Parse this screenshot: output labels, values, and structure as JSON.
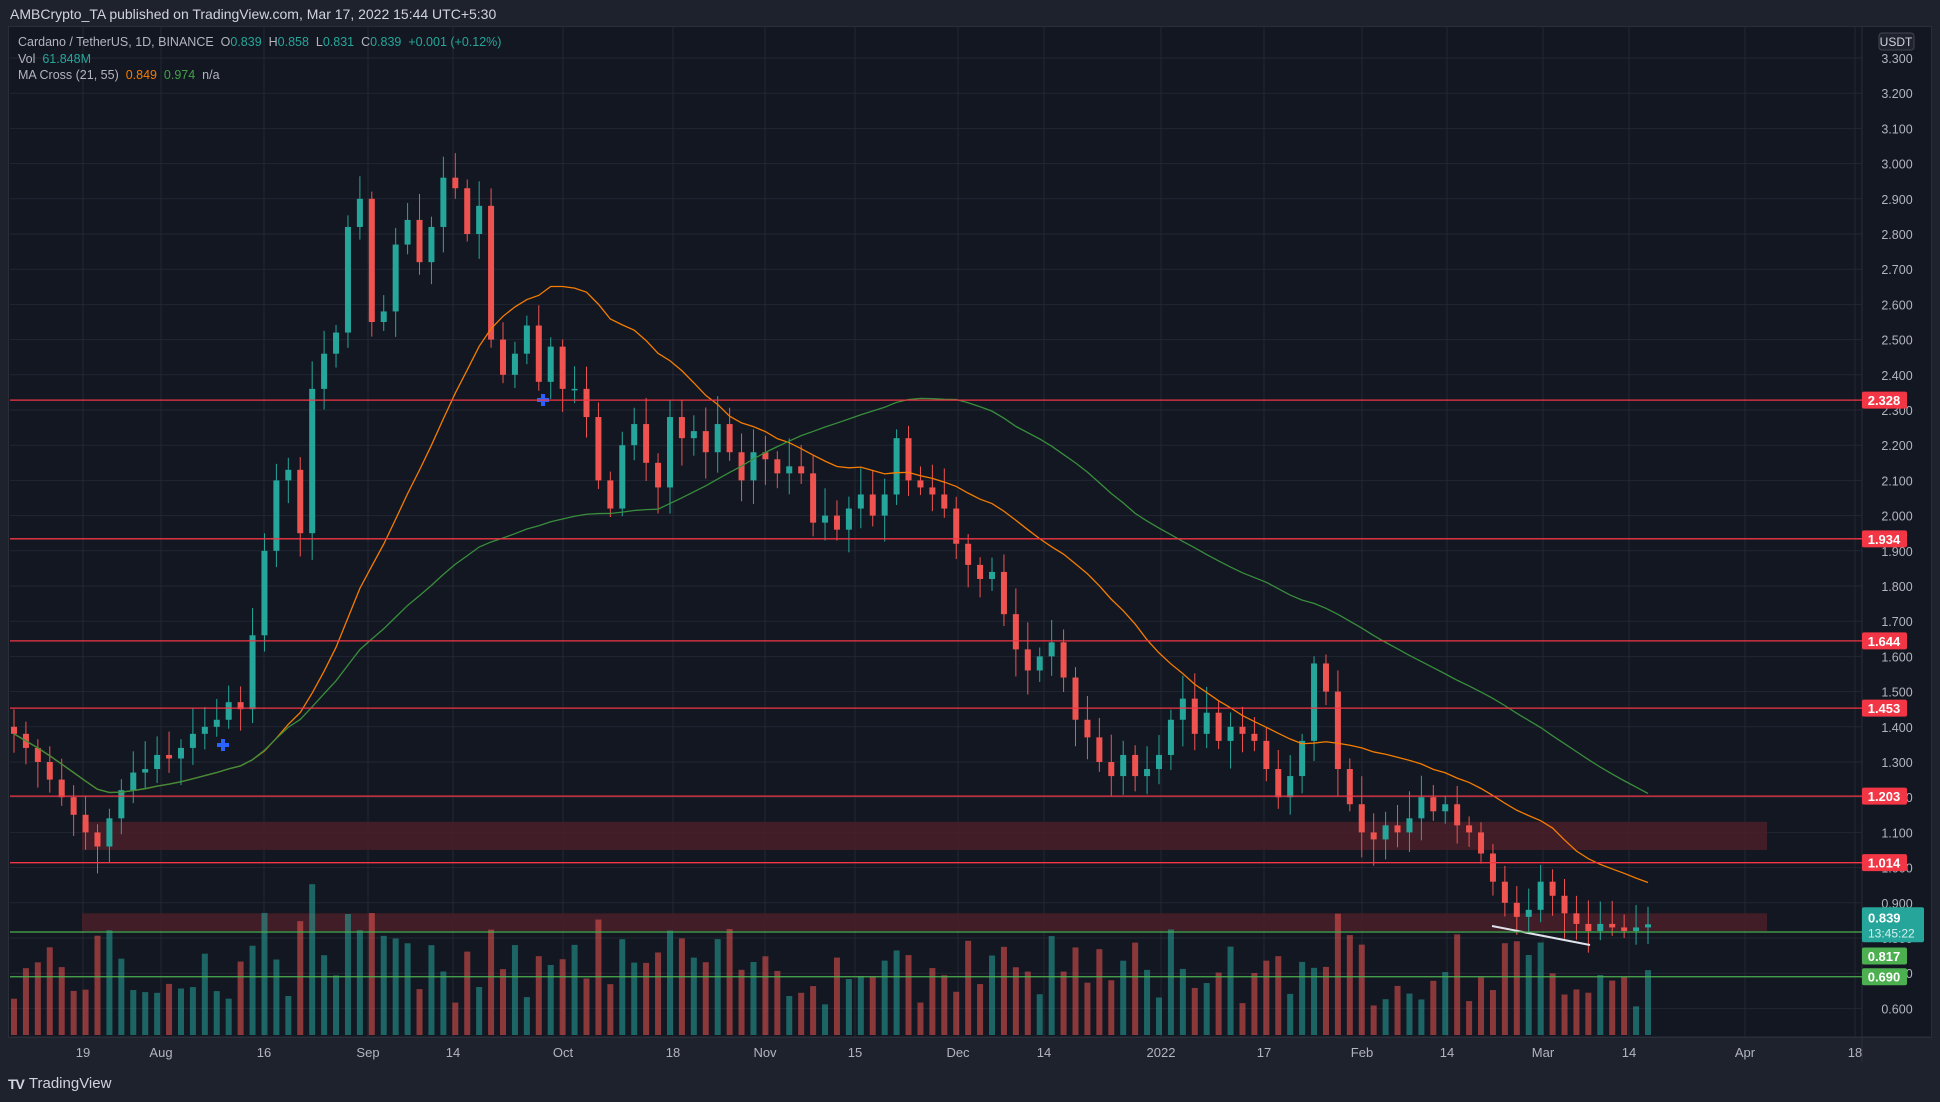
{
  "header": {
    "published": "AMBCrypto_TA published on TradingView.com, Mar 17, 2022 15:44 UTC+5:30"
  },
  "legend": {
    "symbol": "Cardano / TetherUS, 1D, BINANCE",
    "o_label": "O",
    "o": "0.839",
    "h_label": "H",
    "h": "0.858",
    "l_label": "L",
    "l": "0.831",
    "c_label": "C",
    "c": "0.839",
    "change": "+0.001 (+0.12%)",
    "vol_label": "Vol",
    "vol": "61.848M",
    "ma_label": "MA Cross (21, 55)",
    "ma_fast": "0.849",
    "ma_slow": "0.974",
    "ma_na": "n/a"
  },
  "footer": {
    "brand": "TradingView",
    "logo": "TV"
  },
  "colors": {
    "up": "#26a69a",
    "down": "#ef5350",
    "level": "#f23645",
    "support": "#4caf50",
    "ma_fast": "#f57c00",
    "ma_slow": "#388e3c",
    "zone": "#4a1e28",
    "bg": "#131722",
    "grid": "#232733",
    "cross": "#2962ff"
  },
  "chart_data": {
    "type": "candlestick",
    "title": "Cardano / TetherUS, 1D, BINANCE",
    "currency_label": "USDT",
    "y_ticks": [
      "3.300",
      "3.200",
      "3.100",
      "3.000",
      "2.900",
      "2.800",
      "2.700",
      "2.600",
      "2.500",
      "2.400",
      "2.300",
      "2.200",
      "2.100",
      "2.000",
      "1.900",
      "1.800",
      "1.700",
      "1.600",
      "1.500",
      "1.400",
      "1.300",
      "1.200",
      "1.100",
      "1.000",
      "0.900",
      "0.800",
      "0.700",
      "0.600"
    ],
    "x_ticks": [
      "19",
      "Aug",
      "16",
      "Sep",
      "14",
      "Oct",
      "18",
      "Nov",
      "15",
      "Dec",
      "14",
      "2022",
      "17",
      "Feb",
      "14",
      "Mar",
      "14",
      "Apr",
      "18"
    ],
    "ylim": [
      0.55,
      3.35
    ],
    "resistance_levels": [
      "2.328",
      "1.934",
      "1.644",
      "1.453",
      "1.203",
      "1.014"
    ],
    "support_levels": [
      "0.817",
      "0.690"
    ],
    "current_price": "0.839",
    "countdown": "13:45:22",
    "zones": [
      {
        "from": 1.05,
        "to": 1.13
      },
      {
        "from": 0.82,
        "to": 0.87
      }
    ],
    "ma_cross_points": [
      {
        "date": "Aug 9",
        "price": 1.33
      },
      {
        "date": "Sep 28",
        "price": 2.33
      }
    ],
    "closes_approx": [
      1.38,
      1.34,
      1.3,
      1.25,
      1.2,
      1.15,
      1.1,
      1.06,
      1.14,
      1.22,
      1.27,
      1.28,
      1.32,
      1.31,
      1.34,
      1.38,
      1.4,
      1.42,
      1.47,
      1.45,
      1.66,
      1.9,
      2.1,
      2.13,
      1.95,
      2.36,
      2.46,
      2.52,
      2.82,
      2.9,
      2.55,
      2.58,
      2.77,
      2.84,
      2.72,
      2.82,
      2.96,
      2.93,
      2.8,
      2.88,
      2.5,
      2.4,
      2.46,
      2.54,
      2.38,
      2.48,
      2.36,
      2.36,
      2.28,
      2.1,
      2.02,
      2.2,
      2.26,
      2.15,
      2.08,
      2.28,
      2.22,
      2.24,
      2.18,
      2.26,
      2.18,
      2.1,
      2.18,
      2.16,
      2.12,
      2.14,
      2.12,
      1.98,
      2.0,
      1.96,
      2.02,
      2.06,
      2.0,
      2.06,
      2.22,
      2.1,
      2.08,
      2.06,
      2.02,
      1.92,
      1.86,
      1.82,
      1.84,
      1.72,
      1.62,
      1.56,
      1.6,
      1.64,
      1.54,
      1.42,
      1.37,
      1.3,
      1.26,
      1.32,
      1.26,
      1.28,
      1.32,
      1.42,
      1.48,
      1.38,
      1.44,
      1.36,
      1.4,
      1.38,
      1.36,
      1.28,
      1.2,
      1.26,
      1.36,
      1.58,
      1.5,
      1.28,
      1.18,
      1.1,
      1.08,
      1.12,
      1.1,
      1.14,
      1.2,
      1.16,
      1.18,
      1.12,
      1.1,
      1.04,
      0.96,
      0.9,
      0.86,
      0.88,
      0.96,
      0.92,
      0.87,
      0.84,
      0.82,
      0.84,
      0.83,
      0.82,
      0.83,
      0.839
    ],
    "volume_unit": "relative"
  }
}
